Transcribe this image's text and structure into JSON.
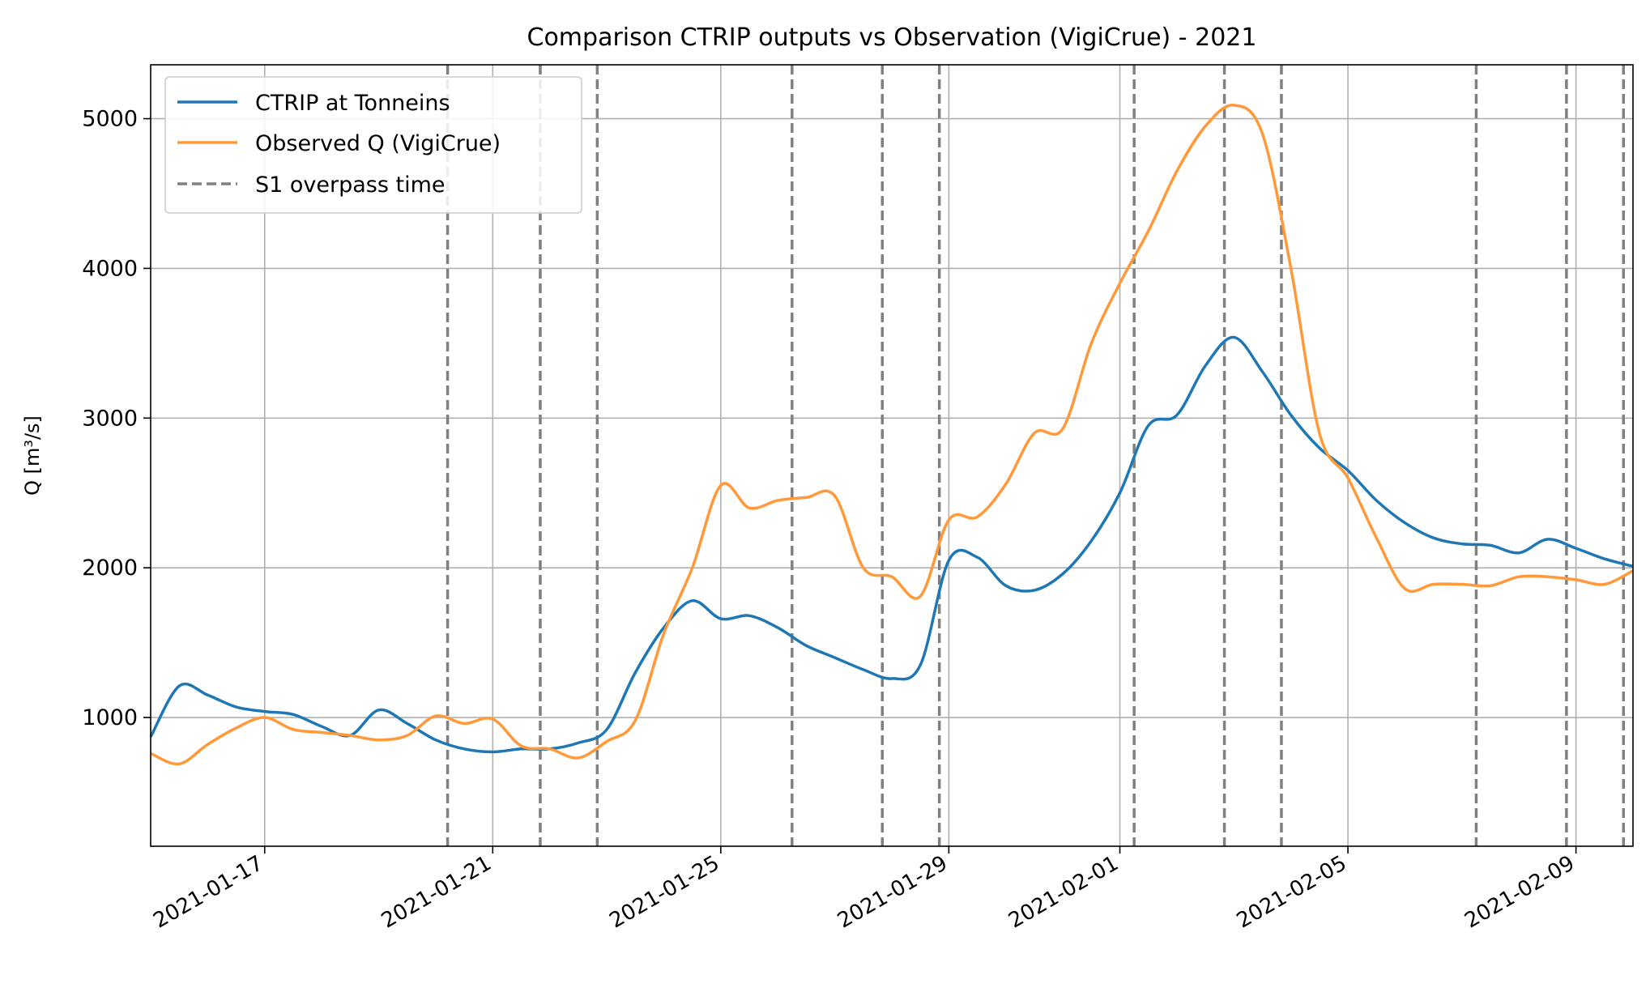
{
  "chart_data": {
    "type": "line",
    "title": "Comparison CTRIP outputs vs Observation (VigiCrue) - 2021",
    "xlabel": "",
    "ylabel": "Q [m³/s]",
    "xlim": [
      "2021-01-15",
      "2021-02-10"
    ],
    "ylim": [
      140,
      5360
    ],
    "x_ticks": [
      "2021-01-17",
      "2021-01-21",
      "2021-01-25",
      "2021-01-29",
      "2021-02-01",
      "2021-02-05",
      "2021-02-09"
    ],
    "y_ticks": [
      1000,
      2000,
      3000,
      4000,
      5000
    ],
    "grid": true,
    "legend_position": "top-left",
    "series": [
      {
        "name": "CTRIP at Tonneins",
        "color": "#1f77b4",
        "x": [
          "2021-01-15",
          "2021-01-15T12:00",
          "2021-01-16",
          "2021-01-16T12:00",
          "2021-01-17",
          "2021-01-17T12:00",
          "2021-01-18",
          "2021-01-18T12:00",
          "2021-01-19",
          "2021-01-19T12:00",
          "2021-01-20",
          "2021-01-20T12:00",
          "2021-01-21",
          "2021-01-21T12:00",
          "2021-01-22",
          "2021-01-22T12:00",
          "2021-01-23",
          "2021-01-23T12:00",
          "2021-01-24",
          "2021-01-24T12:00",
          "2021-01-25",
          "2021-01-25T12:00",
          "2021-01-26",
          "2021-01-26T12:00",
          "2021-01-27",
          "2021-01-27T12:00",
          "2021-01-28",
          "2021-01-28T12:00",
          "2021-01-29",
          "2021-01-29T12:00",
          "2021-01-30",
          "2021-01-30T12:00",
          "2021-01-31",
          "2021-01-31T12:00",
          "2021-02-01",
          "2021-02-01T12:00",
          "2021-02-02",
          "2021-02-02T12:00",
          "2021-02-03",
          "2021-02-03T12:00",
          "2021-02-04",
          "2021-02-04T12:00",
          "2021-02-05",
          "2021-02-05T12:00",
          "2021-02-06",
          "2021-02-06T12:00",
          "2021-02-07",
          "2021-02-07T12:00",
          "2021-02-08",
          "2021-02-08T12:00",
          "2021-02-09",
          "2021-02-09T12:00",
          "2021-02-10"
        ],
        "values": [
          870,
          1210,
          1150,
          1070,
          1040,
          1020,
          940,
          880,
          1050,
          960,
          850,
          790,
          770,
          790,
          790,
          830,
          920,
          1300,
          1600,
          1780,
          1660,
          1680,
          1600,
          1480,
          1400,
          1320,
          1260,
          1350,
          2050,
          2070,
          1880,
          1850,
          1960,
          2180,
          2500,
          2950,
          3020,
          3350,
          3540,
          3310,
          3020,
          2800,
          2650,
          2450,
          2300,
          2200,
          2160,
          2150,
          2100,
          2190,
          2130,
          2060,
          2010
        ]
      },
      {
        "name": "Observed Q (VigiCrue)",
        "color": "#ff993a",
        "x": [
          "2021-01-15",
          "2021-01-15T12:00",
          "2021-01-16",
          "2021-01-16T12:00",
          "2021-01-17",
          "2021-01-17T12:00",
          "2021-01-18",
          "2021-01-18T12:00",
          "2021-01-19",
          "2021-01-19T12:00",
          "2021-01-20",
          "2021-01-20T12:00",
          "2021-01-21",
          "2021-01-21T12:00",
          "2021-01-22",
          "2021-01-22T12:00",
          "2021-01-23",
          "2021-01-23T12:00",
          "2021-01-24",
          "2021-01-24T12:00",
          "2021-01-25",
          "2021-01-25T12:00",
          "2021-01-26",
          "2021-01-26T12:00",
          "2021-01-27",
          "2021-01-27T12:00",
          "2021-01-28",
          "2021-01-28T12:00",
          "2021-01-29",
          "2021-01-29T12:00",
          "2021-01-30",
          "2021-01-30T12:00",
          "2021-01-31",
          "2021-01-31T12:00",
          "2021-02-01",
          "2021-02-01T12:00",
          "2021-02-02",
          "2021-02-02T12:00",
          "2021-02-03",
          "2021-02-03T12:00",
          "2021-02-04",
          "2021-02-04T12:00",
          "2021-02-05",
          "2021-02-05T12:00",
          "2021-02-06",
          "2021-02-06T12:00",
          "2021-02-07",
          "2021-02-07T12:00",
          "2021-02-08",
          "2021-02-08T12:00",
          "2021-02-09",
          "2021-02-09T12:00",
          "2021-02-10"
        ],
        "values": [
          760,
          690,
          820,
          930,
          1000,
          920,
          900,
          880,
          850,
          880,
          1010,
          960,
          990,
          810,
          790,
          730,
          840,
          980,
          1560,
          2000,
          2550,
          2400,
          2450,
          2470,
          2480,
          2000,
          1940,
          1810,
          2320,
          2340,
          2560,
          2900,
          2930,
          3500,
          3900,
          4250,
          4650,
          4950,
          5090,
          4900,
          4000,
          2900,
          2600,
          2200,
          1860,
          1890,
          1890,
          1880,
          1940,
          1940,
          1920,
          1890,
          1980
        ]
      }
    ],
    "reference_lines": {
      "name": "S1 overpass time",
      "color": "#808080",
      "style": "dashed",
      "x": [
        "2021-01-20T05:00",
        "2021-01-21T20:00",
        "2021-01-22T20:00",
        "2021-01-26T06:00",
        "2021-01-27T20:00",
        "2021-01-28T20:00",
        "2021-02-01T06:00",
        "2021-02-02T20:00",
        "2021-02-03T20:00",
        "2021-02-07T06:00",
        "2021-02-08T20:00",
        "2021-02-09T20:00"
      ]
    }
  }
}
